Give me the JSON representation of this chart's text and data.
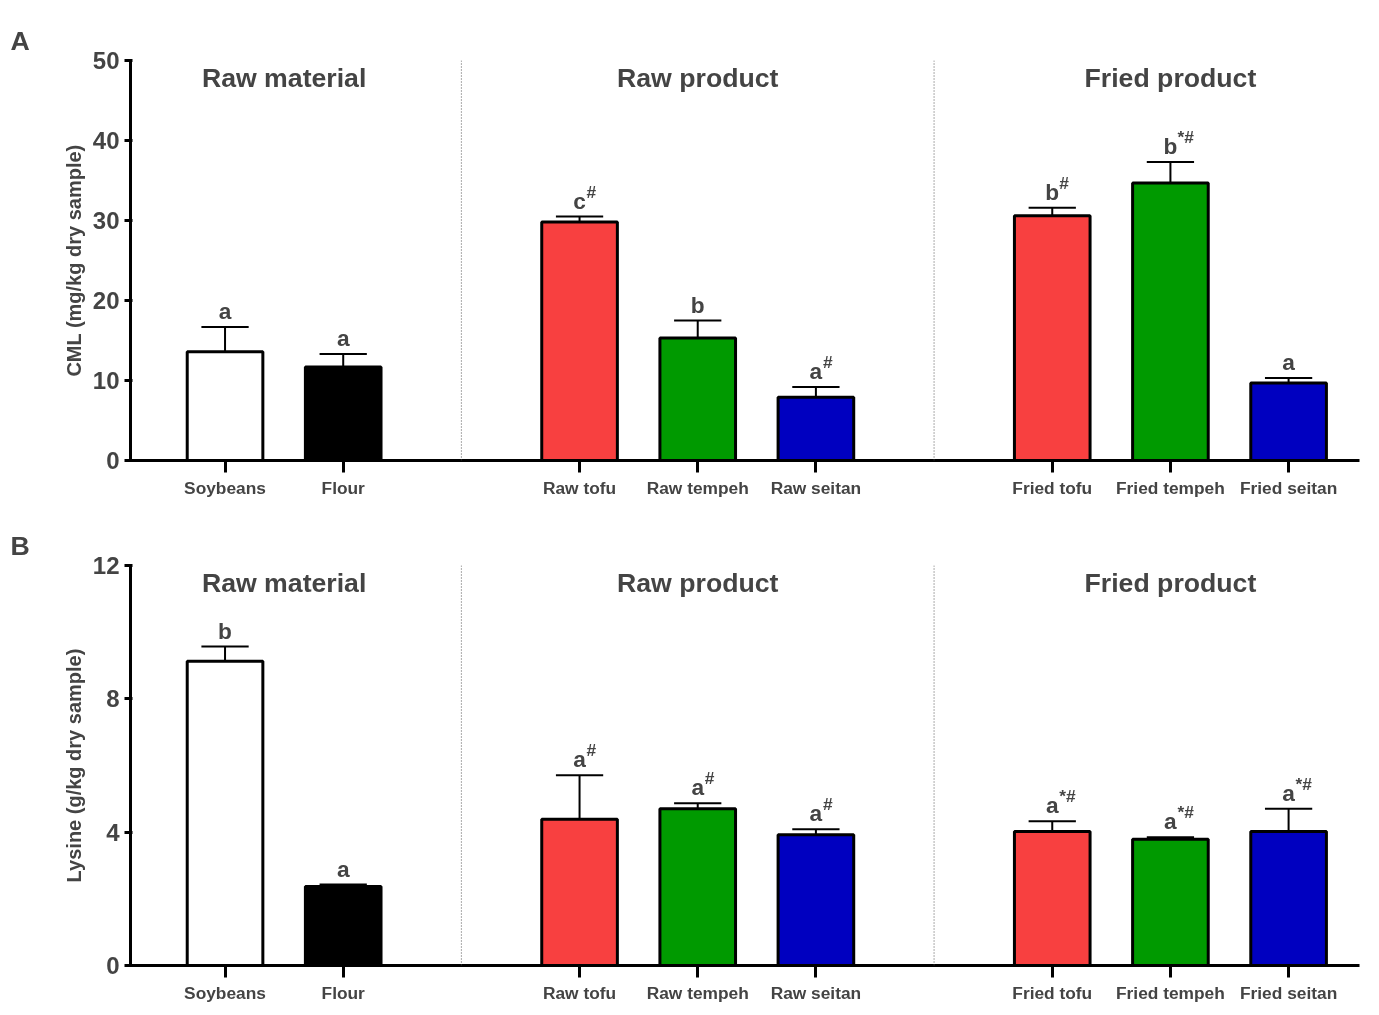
{
  "chart_data": [
    {
      "type": "bar",
      "title": "A",
      "ylabel": "CML (mg/kg dry sample)",
      "categories": [
        "Soybeans",
        "Flour",
        null,
        "Raw tofu",
        "Raw tempeh",
        "Raw seitan",
        null,
        "Fried tofu",
        "Fried tempeh",
        "Fried seitan"
      ],
      "values": [
        13.6,
        11.7,
        null,
        29.8,
        15.3,
        7.9,
        null,
        30.6,
        34.7,
        9.7
      ],
      "errors": [
        [
          13.6,
          16.7
        ],
        [
          11.7,
          13.3
        ],
        null,
        [
          29.8,
          30.5
        ],
        [
          15.3,
          17.5
        ],
        [
          7.9,
          9.2
        ],
        null,
        [
          30.6,
          31.6
        ],
        [
          34.7,
          37.3
        ],
        [
          9.7,
          10.3
        ]
      ],
      "colors": [
        "#ffffff",
        "#000000",
        null,
        "#f84040",
        "#009a00",
        "#0000c0",
        null,
        "#f84040",
        "#009a00",
        "#0000c0"
      ],
      "ylim": [
        0,
        50
      ],
      "yticks": [
        0,
        10,
        20,
        30,
        40,
        50
      ],
      "annotations": [
        "Raw material",
        "Raw product",
        "Fried product",
        {
          "text": "a",
          "x": "Soybeans",
          "y": 16.7
        },
        {
          "text": "a",
          "x": "Flour",
          "y": 13.3
        },
        {
          "text": "c$^{#}$",
          "x": "Raw tofu",
          "y": 30.5
        },
        {
          "text": "b",
          "x": "Raw tempeh",
          "y": 17.5
        },
        {
          "text": "a$^{#}$",
          "x": "Raw seitan",
          "y": 9.2
        },
        {
          "text": "b$^{#}$",
          "x": "Fried tofu",
          "y": 31.6
        },
        {
          "text": "b$^{*#}$",
          "x": "Fried tempeh",
          "y": 37.3
        },
        {
          "text": "a",
          "x": "Fried seitan",
          "y": 10.3
        }
      ]
    },
    {
      "type": "bar",
      "title": "B",
      "ylabel": "Lysine (g/kg dry sample)",
      "categories": [
        "Soybeans",
        "Flour",
        null,
        "Raw tofu",
        "Raw tempeh",
        "Raw seitan",
        null,
        "Fried tofu",
        "Fried tempeh",
        "Fried seitan"
      ],
      "values": [
        9.13,
        2.37,
        null,
        4.39,
        4.7,
        3.92,
        null,
        4.02,
        3.79,
        4.02
      ],
      "errors": [
        [
          9.13,
          9.57
        ],
        [
          2.37,
          2.43
        ],
        null,
        [
          4.39,
          5.71
        ],
        [
          4.7,
          4.87
        ],
        [
          3.92,
          4.09
        ],
        null,
        [
          4.02,
          4.33
        ],
        [
          3.79,
          3.85
        ],
        [
          4.02,
          4.7
        ]
      ],
      "colors": [
        "#ffffff",
        "#000000",
        null,
        "#f84040",
        "#009a00",
        "#0000c0",
        null,
        "#f84040",
        "#009a00",
        "#0000c0"
      ],
      "ylim": [
        0,
        12
      ],
      "yticks": [
        0,
        4,
        8,
        12
      ],
      "annotations": [
        "Raw material",
        "Raw product",
        "Fried product",
        {
          "text": "b",
          "x": "Soybeans",
          "y": 9.57
        },
        {
          "text": "a",
          "x": "Flour",
          "y": 2.43
        },
        {
          "text": "a$^{#}$",
          "x": "Raw tofu",
          "y": 5.71
        },
        {
          "text": "a$^{#}$",
          "x": "Raw tempeh",
          "y": 4.87
        },
        {
          "text": "a$^{#}$",
          "x": "Raw seitan",
          "y": 4.09
        },
        {
          "text": "a$^{*#}$",
          "x": "Fried tofu",
          "y": 4.33
        },
        {
          "text": "a$^{*#}$",
          "x": "Fried tempeh",
          "y": 3.85
        },
        {
          "text": "a$^{*#}$",
          "x": "Fried seitan",
          "y": 4.7
        }
      ]
    }
  ]
}
